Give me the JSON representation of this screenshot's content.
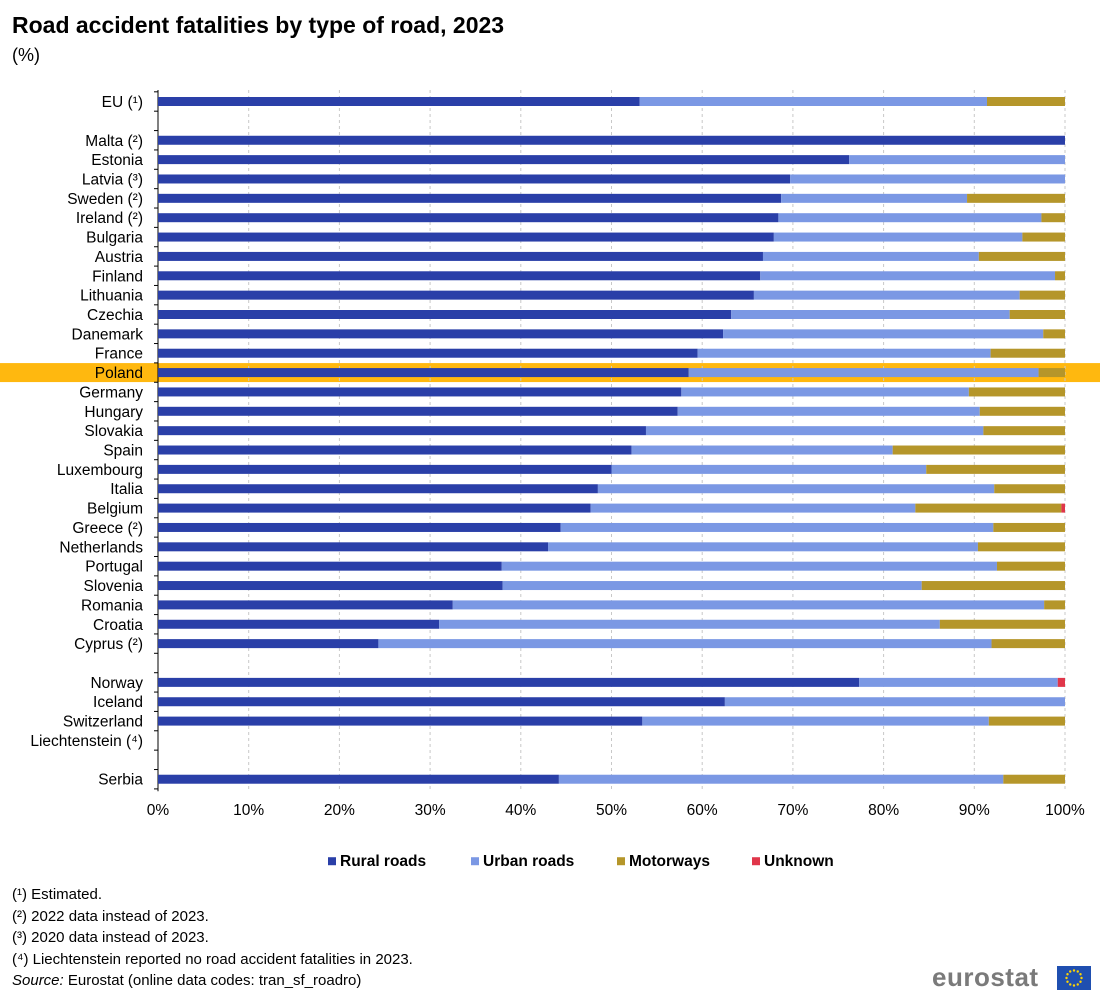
{
  "title": "Road accident fatalities by type of road, 2023",
  "subtitle": "(%)",
  "footnotes": [
    "(¹) Estimated.",
    "(²) 2022 data instead of 2023.",
    "(³) 2020 data instead of 2023.",
    "(⁴) Liechtenstein reported no road accident fatalities in 2023."
  ],
  "source": {
    "label": "Source:",
    "text": "Eurostat (online data codes: tran_sf_roadro)"
  },
  "brand": {
    "name": "eurostat"
  },
  "colors": {
    "rural": "#2a3fa8",
    "urban": "#7b98e4",
    "motorways": "#b5962a",
    "unknown": "#e0364a",
    "highlight": "#ffb80f"
  },
  "chart_data": {
    "type": "bar",
    "orientation": "horizontal",
    "stacked": true,
    "xlim": [
      0,
      100
    ],
    "x_ticks": [
      "0%",
      "10%",
      "20%",
      "30%",
      "40%",
      "50%",
      "60%",
      "70%",
      "80%",
      "90%",
      "100%"
    ],
    "grid": "vertical dashed",
    "legend_position": "bottom",
    "highlighted_category": "Poland",
    "categories": [
      "EU (¹)",
      "Malta (²)",
      "Estonia",
      "Latvia (³)",
      "Sweden (²)",
      "Ireland (²)",
      "Bulgaria",
      "Austria",
      "Finland",
      "Lithuania",
      "Czechia",
      "Danemark",
      "France",
      "Poland",
      "Germany",
      "Hungary",
      "Slovakia",
      "Spain",
      "Luxembourg",
      "Italia",
      "Belgium",
      "Greece (²)",
      "Netherlands",
      "Portugal",
      "Slovenia",
      "Romania",
      "Croatia",
      "Cyprus (²)",
      "Norway",
      "Iceland",
      "Switzerland",
      "Liechtenstein (⁴)",
      "Serbia"
    ],
    "groups": [
      [
        0
      ],
      [
        1,
        27
      ],
      [
        28,
        31
      ],
      [
        32
      ]
    ],
    "series": [
      {
        "name": "Rural roads",
        "values": [
          53.1,
          100.0,
          76.2,
          69.7,
          68.7,
          68.4,
          67.9,
          66.7,
          66.4,
          65.7,
          63.2,
          62.3,
          59.5,
          58.5,
          57.7,
          57.3,
          53.8,
          52.2,
          50.0,
          48.5,
          47.7,
          44.4,
          43.0,
          37.9,
          38.0,
          32.5,
          31.0,
          24.3,
          77.3,
          62.5,
          53.4,
          0,
          44.2
        ]
      },
      {
        "name": "Urban roads",
        "values": [
          38.3,
          0,
          23.8,
          30.3,
          20.5,
          29.0,
          27.4,
          23.8,
          32.5,
          29.3,
          30.7,
          35.3,
          32.3,
          38.6,
          31.7,
          33.3,
          37.2,
          28.8,
          34.7,
          43.7,
          35.8,
          47.7,
          47.4,
          54.6,
          46.2,
          65.2,
          55.2,
          67.6,
          21.9,
          37.5,
          38.2,
          0,
          49.0
        ]
      },
      {
        "name": "Motorways",
        "values": [
          8.6,
          0,
          0,
          0,
          10.8,
          2.6,
          4.7,
          9.5,
          1.1,
          5.0,
          6.1,
          2.4,
          8.2,
          2.9,
          10.6,
          9.4,
          9.0,
          19.0,
          15.3,
          7.8,
          16.1,
          7.9,
          9.6,
          7.5,
          15.8,
          2.3,
          13.8,
          8.1,
          0,
          0,
          8.4,
          0,
          6.8
        ]
      },
      {
        "name": "Unknown",
        "values": [
          0,
          0,
          0,
          0,
          0,
          0,
          0,
          0,
          0,
          0,
          0,
          0,
          0,
          0,
          0,
          0,
          0,
          0,
          0,
          0,
          0.4,
          0,
          0,
          0,
          0,
          0,
          0,
          0,
          0.8,
          0,
          0,
          0,
          0
        ]
      }
    ]
  }
}
